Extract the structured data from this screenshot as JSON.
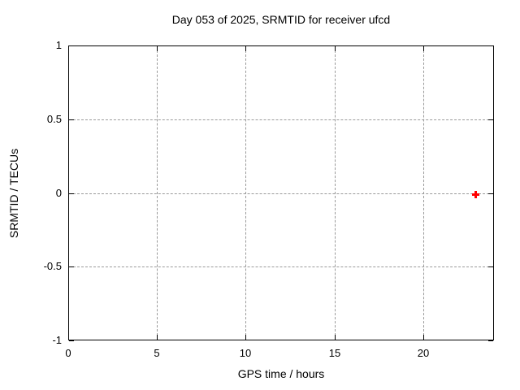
{
  "chart_data": {
    "type": "scatter",
    "title": "Day 053 of 2025, SRMTID for receiver ufcd",
    "xlabel": "GPS time / hours",
    "ylabel": "SRMTID / TECUs",
    "xlim": [
      0,
      24
    ],
    "ylim": [
      -1,
      1
    ],
    "xticks": {
      "values": [
        0,
        5,
        10,
        15,
        20
      ],
      "labels": [
        "0",
        "5",
        "10",
        "15",
        "20"
      ]
    },
    "yticks": {
      "values": [
        -1,
        -0.5,
        0,
        0.5,
        1
      ],
      "labels": [
        "-1",
        "-0.5",
        "0",
        "0.5",
        "1"
      ]
    },
    "grid": true,
    "legend_position": "none",
    "series": [
      {
        "name": "SRMTID",
        "marker": "plus",
        "color": "#ff0000",
        "points": [
          {
            "x": 22.9,
            "y": 0.0
          }
        ]
      }
    ]
  },
  "colors": {
    "background": "#ffffff",
    "axis": "#000000",
    "grid": "#9a9a9a",
    "marker": "#ff0000",
    "text": "#000000"
  }
}
